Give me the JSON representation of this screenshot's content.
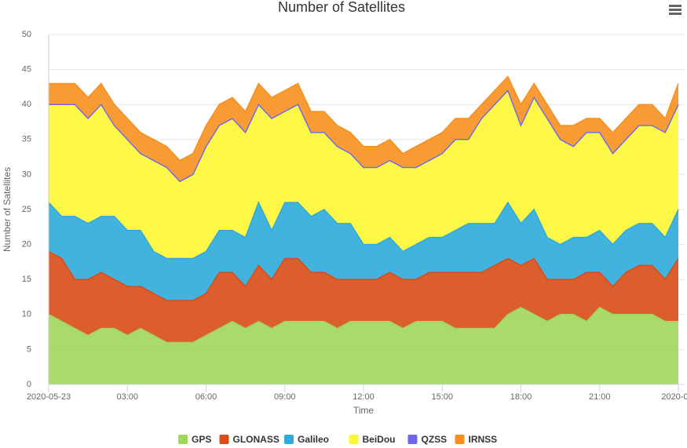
{
  "chart_data": {
    "type": "area",
    "stacked": true,
    "title": "Number of Satellites",
    "x_label": "Time",
    "y_label": "Number of Satellites",
    "x": [
      0,
      0.5,
      1,
      1.5,
      2,
      2.5,
      3,
      3.5,
      4,
      4.5,
      5,
      5.5,
      6,
      6.5,
      7,
      7.5,
      8,
      8.5,
      9,
      9.5,
      10,
      10.5,
      11,
      11.5,
      12,
      12.5,
      13,
      13.5,
      14,
      14.5,
      15,
      15.5,
      16,
      16.5,
      17,
      17.5,
      18,
      18.5,
      19,
      19.5,
      20,
      20.5,
      21,
      21.5,
      22,
      22.5,
      23,
      23.5,
      24
    ],
    "xlim": [
      0,
      24
    ],
    "xticks": [
      {
        "value": 0,
        "label": "2020-05-23"
      },
      {
        "value": 3,
        "label": "03:00"
      },
      {
        "value": 6,
        "label": "06:00"
      },
      {
        "value": 9,
        "label": "09:00"
      },
      {
        "value": 12,
        "label": "12:00"
      },
      {
        "value": 15,
        "label": "15:00"
      },
      {
        "value": 18,
        "label": "18:00"
      },
      {
        "value": 21,
        "label": "21:00"
      },
      {
        "value": 24,
        "label": "2020-0..."
      }
    ],
    "ylim": [
      0,
      50
    ],
    "yticks": [
      0,
      5,
      10,
      15,
      20,
      25,
      30,
      35,
      40,
      45,
      50
    ],
    "grid": true,
    "series": [
      {
        "name": "GPS",
        "color": "#a0d65a",
        "values": [
          10,
          9,
          8,
          7,
          8,
          8,
          7,
          8,
          7,
          6,
          6,
          6,
          7,
          8,
          9,
          8,
          9,
          8,
          9,
          9,
          9,
          9,
          8,
          9,
          9,
          9,
          9,
          8,
          9,
          9,
          9,
          8,
          8,
          8,
          8,
          10,
          11,
          10,
          9,
          10,
          10,
          9,
          11,
          10,
          10,
          10,
          10,
          9,
          9
        ]
      },
      {
        "name": "GLONASS",
        "color": "#d84c17",
        "values": [
          9,
          9,
          7,
          8,
          8,
          7,
          7,
          6,
          6,
          6,
          6,
          6,
          6,
          8,
          7,
          6,
          8,
          7,
          9,
          9,
          7,
          7,
          7,
          6,
          6,
          6,
          7,
          7,
          6,
          7,
          7,
          8,
          8,
          8,
          9,
          8,
          6,
          8,
          6,
          5,
          5,
          7,
          5,
          4,
          6,
          7,
          7,
          6,
          9
        ]
      },
      {
        "name": "Galileo",
        "color": "#2eaadc",
        "values": [
          7,
          6,
          9,
          8,
          8,
          9,
          8,
          8,
          6,
          6,
          6,
          6,
          6,
          6,
          6,
          7,
          9,
          7,
          8,
          8,
          8,
          9,
          8,
          8,
          5,
          5,
          5,
          4,
          5,
          5,
          5,
          6,
          7,
          7,
          6,
          8,
          6,
          7,
          6,
          5,
          6,
          5,
          6,
          6,
          6,
          6,
          6,
          6,
          7
        ]
      },
      {
        "name": "BeiDou",
        "color": "#fdf733",
        "values": [
          14,
          16,
          16,
          15,
          16,
          13,
          13,
          11,
          13,
          13,
          11,
          12,
          15,
          15,
          16,
          15,
          14,
          16,
          13,
          14,
          12,
          11,
          11,
          10,
          11,
          11,
          11,
          12,
          11,
          11,
          12,
          13,
          12,
          15,
          17,
          16,
          14,
          16,
          17,
          15,
          13,
          15,
          14,
          13,
          13,
          14,
          14,
          15,
          15
        ]
      },
      {
        "name": "QZSS",
        "color": "#6f66f0",
        "values": [
          0,
          0,
          0,
          0,
          0,
          0,
          0,
          0,
          0,
          0,
          0,
          0,
          0,
          0,
          0,
          0,
          0,
          0,
          0,
          0,
          0,
          0,
          0,
          0,
          0,
          0,
          0,
          0,
          0,
          0,
          0,
          0,
          0,
          0,
          0,
          0,
          0,
          0,
          0,
          0,
          0,
          0,
          0,
          0,
          0,
          0,
          0,
          0,
          0
        ]
      },
      {
        "name": "IRNSS",
        "color": "#f7901e",
        "values": [
          3,
          3,
          3,
          3,
          3,
          3,
          3,
          3,
          3,
          3,
          3,
          3,
          3,
          3,
          3,
          3,
          3,
          3,
          3,
          3,
          3,
          3,
          3,
          3,
          3,
          3,
          3,
          2,
          3,
          3,
          3,
          3,
          3,
          2,
          2,
          2,
          3,
          2,
          2,
          2,
          3,
          2,
          2,
          3,
          3,
          3,
          3,
          2,
          3
        ]
      }
    ]
  }
}
